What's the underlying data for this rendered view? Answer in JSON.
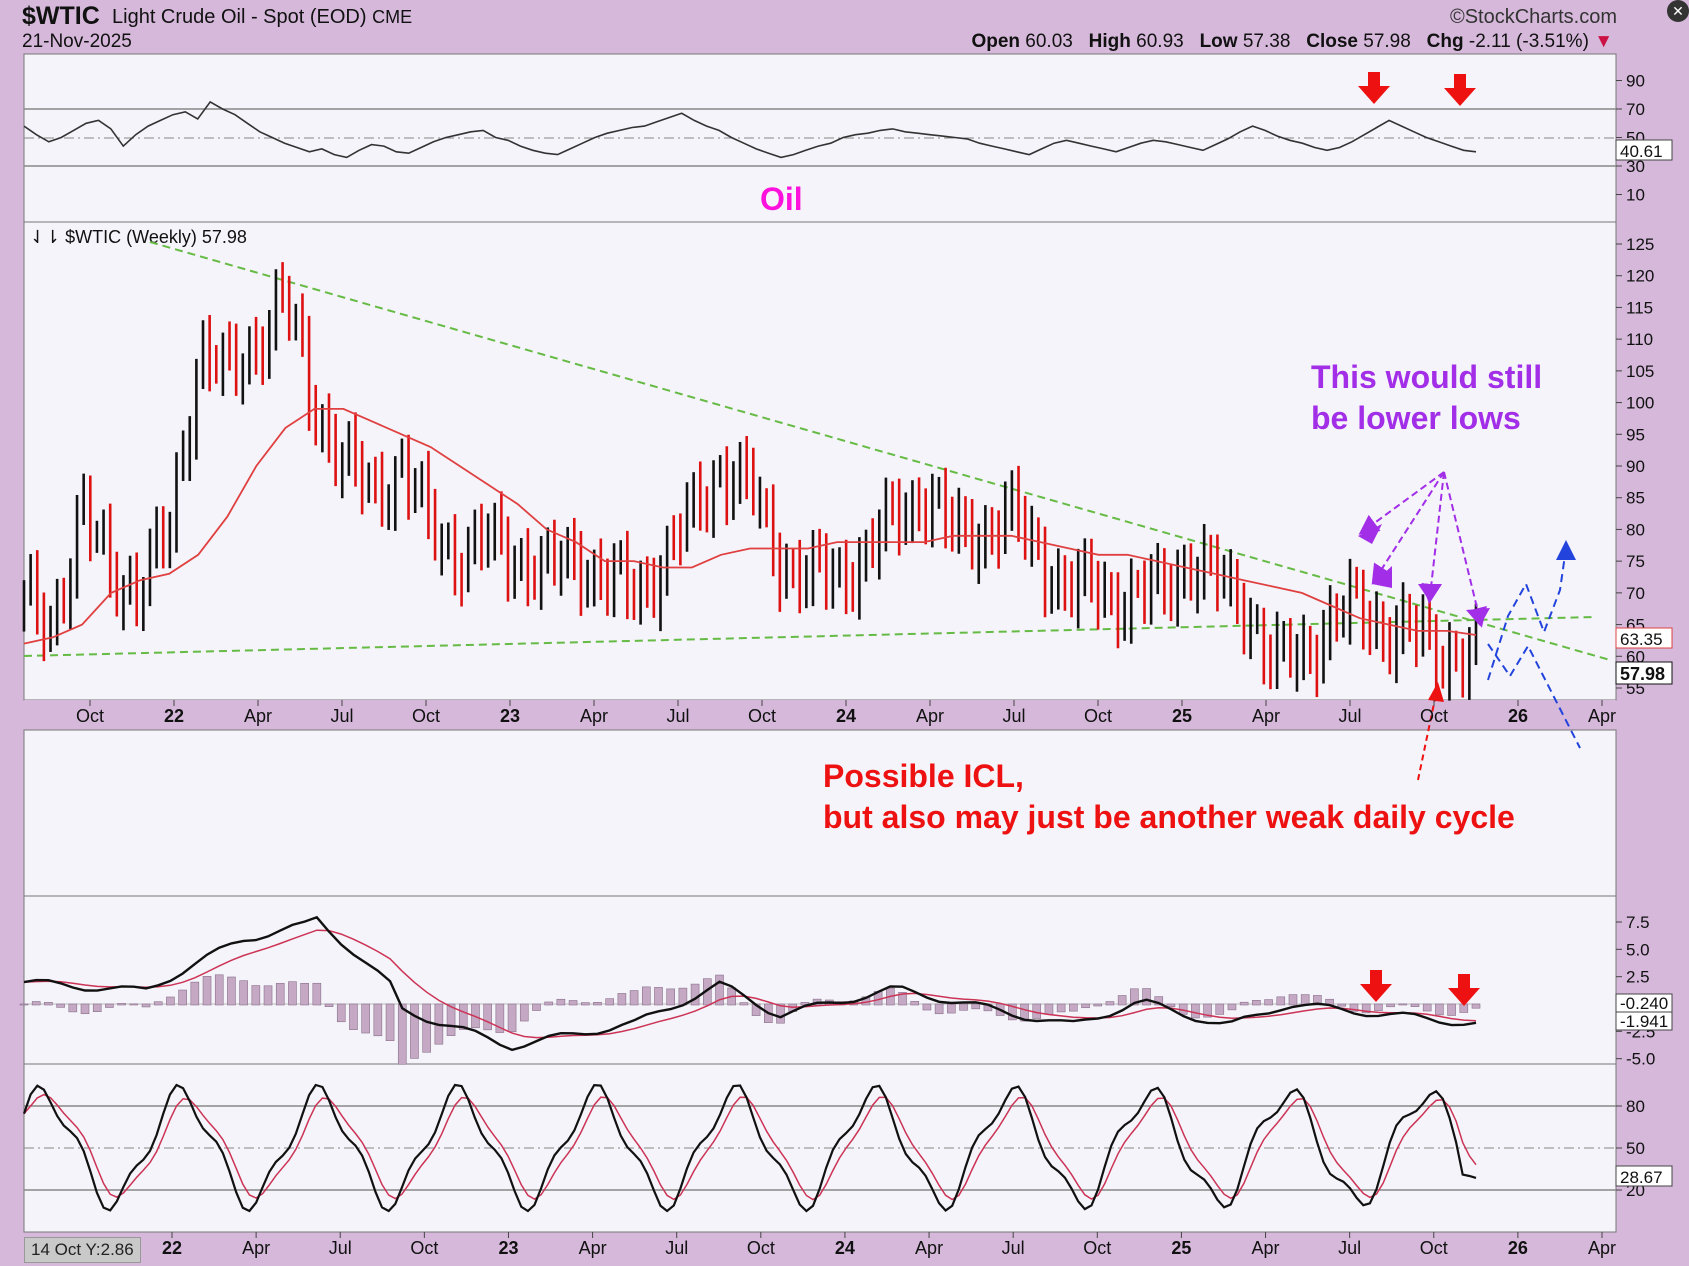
{
  "header": {
    "symbol": "$WTIC",
    "name": "Light Crude Oil - Spot (EOD)",
    "exchange": "CME",
    "date": "21-Nov-2025",
    "source": "©StockCharts.com",
    "open_label": "Open",
    "open": "60.03",
    "high_label": "High",
    "high": "60.93",
    "low_label": "Low",
    "low": "57.38",
    "close_label": "Close",
    "close": "57.98",
    "chg_label": "Chg",
    "chg": "-2.11 (-3.51%)"
  },
  "colors": {
    "up": "#111111",
    "down": "#dd1111",
    "ma": "#e04040",
    "trend": "#66bb44",
    "purple": "#a22ee8",
    "red_ann": "#ee1111",
    "blue": "#2244dd",
    "oil": "#ff11dd",
    "panel_bg": "#f4f4fa",
    "rsi": "#333333",
    "hist": "#a88aa8",
    "signal": "#cc3355"
  },
  "rsi_panel": {
    "ticks": [
      "90",
      "70",
      "50",
      "30",
      "10"
    ],
    "last_value": "40.61",
    "series": [
      58,
      52,
      47,
      50,
      55,
      60,
      62,
      56,
      44,
      52,
      58,
      62,
      66,
      68,
      63,
      75,
      70,
      66,
      60,
      54,
      50,
      46,
      43,
      40,
      42,
      38,
      36,
      41,
      45,
      44,
      40,
      39,
      43,
      47,
      50,
      52,
      54,
      55,
      50,
      48,
      44,
      41,
      39,
      38,
      42,
      46,
      50,
      53,
      55,
      57,
      58,
      61,
      64,
      67,
      62,
      58,
      55,
      50,
      46,
      42,
      39,
      36,
      38,
      41,
      44,
      46,
      50,
      52,
      53,
      55,
      56,
      54,
      53,
      52,
      51,
      50,
      49,
      46,
      44,
      42,
      40,
      38,
      42,
      46,
      48,
      46,
      44,
      42,
      40,
      43,
      46,
      48,
      47,
      45,
      43,
      41,
      45,
      49,
      54,
      58,
      55,
      51,
      48,
      46,
      43,
      41,
      43,
      47,
      52,
      57,
      62,
      58,
      54,
      50,
      47,
      44,
      41,
      40
    ],
    "label": "Oil"
  },
  "price_panel": {
    "title": "$WTIC (Weekly) 57.98",
    "ticks": [
      "125",
      "120",
      "115",
      "110",
      "105",
      "100",
      "95",
      "90",
      "85",
      "80",
      "75",
      "70",
      "65",
      "60",
      "55"
    ],
    "ma_value": "63.35",
    "last_value": "57.98",
    "x_labels": [
      "Oct",
      "22",
      "Apr",
      "Jul",
      "Oct",
      "23",
      "Apr",
      "Jul",
      "Oct",
      "24",
      "Apr",
      "Jul",
      "Oct",
      "25",
      "Apr",
      "Jul",
      "Oct",
      "26",
      "Apr"
    ],
    "annotation_purple": [
      "This would still",
      "be lower lows"
    ],
    "annotation_red": [
      "Possible ICL,",
      "but also may just be another weak daily cycle"
    ]
  },
  "macd_panel": {
    "ticks": [
      "7.5",
      "5.0",
      "2.5",
      "-2.5",
      "-5.0"
    ],
    "last_value_1": "-0.240",
    "last_value_2": "-1.941"
  },
  "stoch_panel": {
    "ticks": [
      "80",
      "50",
      "20"
    ],
    "last_value": "28.67",
    "x_labels": [
      "22",
      "Apr",
      "Jul",
      "Oct",
      "23",
      "Apr",
      "Jul",
      "Oct",
      "24",
      "Apr",
      "Jul",
      "Oct",
      "25",
      "Apr",
      "Jul",
      "Oct",
      "26",
      "Apr"
    ],
    "status_chip": "14 Oct Y:2.86"
  },
  "chart_data": {
    "type": "line",
    "title": "$WTIC Light Crude Oil - Spot (EOD) CME",
    "subtitle": "$WTIC (Weekly) 57.98",
    "xlabel": "",
    "ylabel": "",
    "ylim": [
      53,
      127
    ],
    "x": [
      "2021-09",
      "2021-10",
      "2021-11",
      "2021-12",
      "2022-01",
      "2022-02",
      "2022-03",
      "2022-04",
      "2022-05",
      "2022-06",
      "2022-07",
      "2022-08",
      "2022-09",
      "2022-10",
      "2022-11",
      "2022-12",
      "2023-01",
      "2023-02",
      "2023-03",
      "2023-04",
      "2023-05",
      "2023-06",
      "2023-07",
      "2023-08",
      "2023-09",
      "2023-10",
      "2023-11",
      "2023-12",
      "2024-01",
      "2024-02",
      "2024-03",
      "2024-04",
      "2024-05",
      "2024-06",
      "2024-07",
      "2024-08",
      "2024-09",
      "2024-10",
      "2024-11",
      "2024-12",
      "2025-01",
      "2025-02",
      "2025-03",
      "2025-04",
      "2025-05",
      "2025-06",
      "2025-07",
      "2025-08",
      "2025-09",
      "2025-10",
      "2025-11"
    ],
    "series": [
      {
        "name": "$WTIC (Weekly) 57.98",
        "values": [
          68,
          66,
          82,
          74,
          70,
          80,
          108,
          104,
          110,
          116,
          100,
          90,
          86,
          90,
          80,
          76,
          78,
          76,
          73,
          76,
          72,
          70,
          75,
          82,
          90,
          86,
          76,
          72,
          73,
          76,
          82,
          86,
          79,
          80,
          82,
          76,
          70,
          71,
          69,
          70,
          75,
          72,
          69,
          58,
          61,
          65,
          68,
          64,
          63,
          61,
          59
        ]
      },
      {
        "name": "MA",
        "values": [
          62,
          63,
          65,
          70,
          72,
          73,
          76,
          82,
          90,
          96,
          99,
          99,
          97,
          95,
          93,
          90,
          87,
          84,
          80,
          78,
          75,
          75,
          74,
          74,
          76,
          77,
          77,
          77,
          78,
          78,
          78,
          78,
          79,
          79,
          79,
          78,
          77,
          76,
          76,
          75,
          74,
          73,
          72,
          71,
          70,
          68,
          66,
          65,
          64,
          64,
          63.35
        ]
      }
    ],
    "rsi": {
      "name": "RSI",
      "ticks": [
        90,
        70,
        50,
        30,
        10
      ],
      "last": 40.61
    },
    "macd": {
      "last_a": -0.24,
      "last_b": -1.941
    },
    "stochastic": {
      "last": 28.67
    },
    "grid": false,
    "legend": "none"
  }
}
